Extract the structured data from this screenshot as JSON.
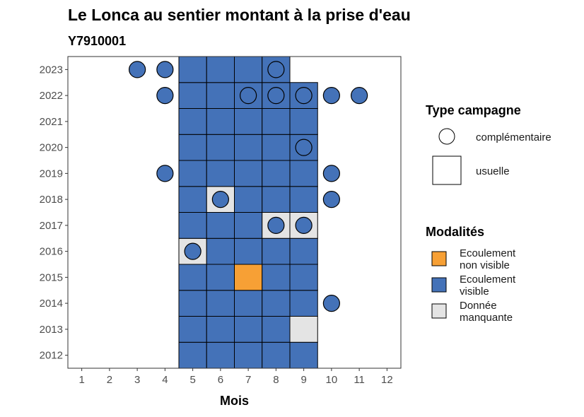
{
  "chart_data": {
    "type": "heatmap",
    "title": "Le Lonca au sentier montant à la prise d'eau",
    "subtitle": "Y7910001",
    "xlabel": "Mois",
    "ylabel": "",
    "x_ticks": [
      "1",
      "2",
      "3",
      "4",
      "5",
      "6",
      "7",
      "8",
      "9",
      "10",
      "11",
      "12"
    ],
    "y_ticks": [
      "2012",
      "2013",
      "2014",
      "2015",
      "2016",
      "2017",
      "2018",
      "2019",
      "2020",
      "2021",
      "2022",
      "2023"
    ],
    "xlim": [
      0.5,
      12.5
    ],
    "ylim": [
      2011.5,
      2023.5
    ],
    "colors": {
      "Ecoulement visible": "#4472b8",
      "Ecoulement non visible": "#f7a035",
      "Donnée manquante": "#e4e4e4"
    },
    "usuelle_cells": [
      {
        "year": 2012,
        "months": [
          {
            "m": 5,
            "v": "Ecoulement visible"
          },
          {
            "m": 6,
            "v": "Ecoulement visible"
          },
          {
            "m": 7,
            "v": "Ecoulement visible"
          },
          {
            "m": 8,
            "v": "Ecoulement visible"
          },
          {
            "m": 9,
            "v": "Ecoulement visible"
          }
        ]
      },
      {
        "year": 2013,
        "months": [
          {
            "m": 5,
            "v": "Ecoulement visible"
          },
          {
            "m": 6,
            "v": "Ecoulement visible"
          },
          {
            "m": 7,
            "v": "Ecoulement visible"
          },
          {
            "m": 8,
            "v": "Ecoulement visible"
          },
          {
            "m": 9,
            "v": "Donnée manquante"
          }
        ]
      },
      {
        "year": 2014,
        "months": [
          {
            "m": 5,
            "v": "Ecoulement visible"
          },
          {
            "m": 6,
            "v": "Ecoulement visible"
          },
          {
            "m": 7,
            "v": "Ecoulement visible"
          },
          {
            "m": 8,
            "v": "Ecoulement visible"
          },
          {
            "m": 9,
            "v": "Ecoulement visible"
          }
        ]
      },
      {
        "year": 2015,
        "months": [
          {
            "m": 5,
            "v": "Ecoulement visible"
          },
          {
            "m": 6,
            "v": "Ecoulement visible"
          },
          {
            "m": 7,
            "v": "Ecoulement non visible"
          },
          {
            "m": 8,
            "v": "Ecoulement visible"
          },
          {
            "m": 9,
            "v": "Ecoulement visible"
          }
        ]
      },
      {
        "year": 2016,
        "months": [
          {
            "m": 5,
            "v": "Donnée manquante"
          },
          {
            "m": 6,
            "v": "Ecoulement visible"
          },
          {
            "m": 7,
            "v": "Ecoulement visible"
          },
          {
            "m": 8,
            "v": "Ecoulement visible"
          },
          {
            "m": 9,
            "v": "Ecoulement visible"
          }
        ]
      },
      {
        "year": 2017,
        "months": [
          {
            "m": 5,
            "v": "Ecoulement visible"
          },
          {
            "m": 6,
            "v": "Ecoulement visible"
          },
          {
            "m": 7,
            "v": "Ecoulement visible"
          },
          {
            "m": 8,
            "v": "Donnée manquante"
          },
          {
            "m": 9,
            "v": "Donnée manquante"
          }
        ]
      },
      {
        "year": 2018,
        "months": [
          {
            "m": 5,
            "v": "Ecoulement visible"
          },
          {
            "m": 6,
            "v": "Donnée manquante"
          },
          {
            "m": 7,
            "v": "Ecoulement visible"
          },
          {
            "m": 8,
            "v": "Ecoulement visible"
          },
          {
            "m": 9,
            "v": "Ecoulement visible"
          }
        ]
      },
      {
        "year": 2019,
        "months": [
          {
            "m": 5,
            "v": "Ecoulement visible"
          },
          {
            "m": 6,
            "v": "Ecoulement visible"
          },
          {
            "m": 7,
            "v": "Ecoulement visible"
          },
          {
            "m": 8,
            "v": "Ecoulement visible"
          },
          {
            "m": 9,
            "v": "Ecoulement visible"
          }
        ]
      },
      {
        "year": 2020,
        "months": [
          {
            "m": 5,
            "v": "Ecoulement visible"
          },
          {
            "m": 6,
            "v": "Ecoulement visible"
          },
          {
            "m": 7,
            "v": "Ecoulement visible"
          },
          {
            "m": 8,
            "v": "Ecoulement visible"
          },
          {
            "m": 9,
            "v": "Ecoulement visible"
          }
        ]
      },
      {
        "year": 2021,
        "months": [
          {
            "m": 5,
            "v": "Ecoulement visible"
          },
          {
            "m": 6,
            "v": "Ecoulement visible"
          },
          {
            "m": 7,
            "v": "Ecoulement visible"
          },
          {
            "m": 8,
            "v": "Ecoulement visible"
          },
          {
            "m": 9,
            "v": "Ecoulement visible"
          }
        ]
      },
      {
        "year": 2022,
        "months": [
          {
            "m": 5,
            "v": "Ecoulement visible"
          },
          {
            "m": 6,
            "v": "Ecoulement visible"
          },
          {
            "m": 7,
            "v": "Ecoulement visible"
          },
          {
            "m": 8,
            "v": "Ecoulement visible"
          },
          {
            "m": 9,
            "v": "Ecoulement visible"
          }
        ]
      },
      {
        "year": 2023,
        "months": [
          {
            "m": 5,
            "v": "Ecoulement visible"
          },
          {
            "m": 6,
            "v": "Ecoulement visible"
          },
          {
            "m": 7,
            "v": "Ecoulement visible"
          },
          {
            "m": 8,
            "v": "Ecoulement visible"
          }
        ]
      }
    ],
    "complementaire_points": [
      {
        "year": 2014,
        "month": 10,
        "v": "Ecoulement visible"
      },
      {
        "year": 2016,
        "month": 5,
        "v": "Ecoulement visible"
      },
      {
        "year": 2017,
        "month": 8,
        "v": "Ecoulement visible"
      },
      {
        "year": 2017,
        "month": 9,
        "v": "Ecoulement visible"
      },
      {
        "year": 2018,
        "month": 6,
        "v": "Ecoulement visible"
      },
      {
        "year": 2018,
        "month": 10,
        "v": "Ecoulement visible"
      },
      {
        "year": 2019,
        "month": 4,
        "v": "Ecoulement visible"
      },
      {
        "year": 2019,
        "month": 10,
        "v": "Ecoulement visible"
      },
      {
        "year": 2020,
        "month": 9,
        "v": "Ecoulement visible"
      },
      {
        "year": 2022,
        "month": 4,
        "v": "Ecoulement visible"
      },
      {
        "year": 2022,
        "month": 7,
        "v": "Ecoulement visible"
      },
      {
        "year": 2022,
        "month": 8,
        "v": "Ecoulement visible"
      },
      {
        "year": 2022,
        "month": 9,
        "v": "Ecoulement visible"
      },
      {
        "year": 2022,
        "month": 10,
        "v": "Ecoulement visible"
      },
      {
        "year": 2022,
        "month": 11,
        "v": "Ecoulement visible"
      },
      {
        "year": 2023,
        "month": 3,
        "v": "Ecoulement visible"
      },
      {
        "year": 2023,
        "month": 4,
        "v": "Ecoulement visible"
      },
      {
        "year": 2023,
        "month": 8,
        "v": "Ecoulement visible"
      }
    ],
    "legend_type": {
      "title": "Type campagne",
      "items": [
        "complémentaire",
        "usuelle"
      ]
    },
    "legend_modalites": {
      "title": "Modalités",
      "items": [
        {
          "lines": [
            "Ecoulement",
            "non visible"
          ],
          "key": "Ecoulement non visible"
        },
        {
          "lines": [
            "Ecoulement",
            "visible"
          ],
          "key": "Ecoulement visible"
        },
        {
          "lines": [
            "Donnée",
            "manquante"
          ],
          "key": "Donnée manquante"
        }
      ]
    },
    "legend_position": "right",
    "grid": false
  }
}
